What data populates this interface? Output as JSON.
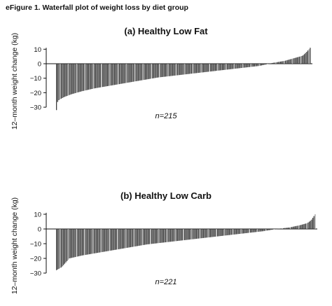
{
  "figure_title": "eFigure 1. Waterfall plot of weight loss by diet group",
  "chart_data": [
    {
      "type": "bar",
      "title": "(a) Healthy Low Fat",
      "ylabel": "12–month weight change (kg)",
      "xlabel": "",
      "annotation": "n=215",
      "ylim": [
        -32,
        12
      ],
      "yticks": [
        10,
        0,
        -10,
        -20,
        -30
      ],
      "n": 215,
      "sorted": "ascending",
      "quantiles": [
        [
          0.0,
          -32
        ],
        [
          0.005,
          -26
        ],
        [
          0.01,
          -25
        ],
        [
          0.03,
          -23
        ],
        [
          0.06,
          -21
        ],
        [
          0.1,
          -19
        ],
        [
          0.15,
          -17
        ],
        [
          0.2,
          -15.5
        ],
        [
          0.25,
          -14
        ],
        [
          0.3,
          -12.5
        ],
        [
          0.35,
          -11
        ],
        [
          0.4,
          -9.5
        ],
        [
          0.45,
          -8.5
        ],
        [
          0.5,
          -7.5
        ],
        [
          0.55,
          -6.5
        ],
        [
          0.6,
          -5.5
        ],
        [
          0.65,
          -4.5
        ],
        [
          0.7,
          -3.5
        ],
        [
          0.75,
          -2.5
        ],
        [
          0.8,
          -1.5
        ],
        [
          0.85,
          0.5
        ],
        [
          0.9,
          2
        ],
        [
          0.94,
          4
        ],
        [
          0.97,
          5.5
        ],
        [
          0.985,
          8
        ],
        [
          1.0,
          11
        ]
      ]
    },
    {
      "type": "bar",
      "title": "(b) Healthy Low Carb",
      "ylabel": "12–month weight change (kg)",
      "xlabel": "",
      "annotation": "n=221",
      "ylim": [
        -32,
        12
      ],
      "yticks": [
        10,
        0,
        -10,
        -20,
        -30
      ],
      "n": 221,
      "sorted": "ascending",
      "quantiles": [
        [
          0.0,
          -28
        ],
        [
          0.01,
          -27
        ],
        [
          0.02,
          -26
        ],
        [
          0.05,
          -20
        ],
        [
          0.1,
          -18
        ],
        [
          0.15,
          -16.5
        ],
        [
          0.2,
          -15
        ],
        [
          0.25,
          -13.5
        ],
        [
          0.3,
          -12
        ],
        [
          0.35,
          -10.5
        ],
        [
          0.4,
          -9.5
        ],
        [
          0.45,
          -8.5
        ],
        [
          0.5,
          -7.5
        ],
        [
          0.55,
          -6.5
        ],
        [
          0.6,
          -5.5
        ],
        [
          0.65,
          -4.5
        ],
        [
          0.7,
          -3.5
        ],
        [
          0.75,
          -2.5
        ],
        [
          0.8,
          -1.5
        ],
        [
          0.85,
          0
        ],
        [
          0.9,
          1
        ],
        [
          0.94,
          2.5
        ],
        [
          0.97,
          4
        ],
        [
          0.985,
          6
        ],
        [
          1.0,
          10
        ]
      ]
    }
  ]
}
